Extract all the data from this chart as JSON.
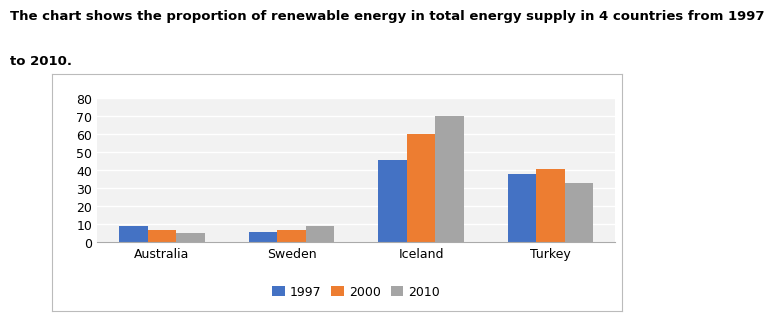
{
  "title_line1": "The chart shows the proportion of renewable energy in total energy supply in 4 countries from 1997",
  "title_line2": "to 2010.",
  "categories": [
    "Australia",
    "Sweden",
    "Iceland",
    "Turkey"
  ],
  "series": {
    "1997": [
      9,
      6,
      46,
      38
    ],
    "2000": [
      7,
      7,
      60,
      41
    ],
    "2010": [
      5,
      9,
      70,
      33
    ]
  },
  "bar_colors": {
    "1997": "#4472C4",
    "2000": "#ED7D31",
    "2010": "#A5A5A5"
  },
  "ylim": [
    0,
    80
  ],
  "yticks": [
    0,
    10,
    20,
    30,
    40,
    50,
    60,
    70,
    80
  ],
  "legend_labels": [
    "1997",
    "2000",
    "2010"
  ],
  "title_fontsize": 9.5,
  "axis_fontsize": 9,
  "legend_fontsize": 9,
  "bar_width": 0.22,
  "plot_bg_color": "#F2F2F2",
  "fig_bg_color": "#FFFFFF",
  "grid_color": "#FFFFFF",
  "box_border_color": "#BBBBBB"
}
